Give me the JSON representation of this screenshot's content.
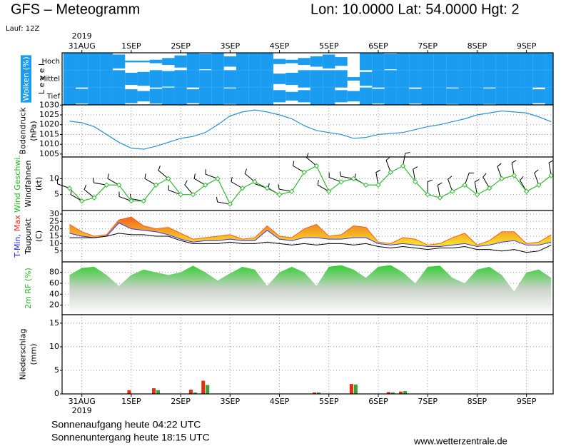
{
  "header": {
    "title": "GFS – Meteogramm",
    "location": "Lon: 10.0000 Lat: 54.0000 Hgt: 2",
    "run": "Lauf: 12Z"
  },
  "x_axis": {
    "xlim": [
      -0.4,
      9.54
    ],
    "year": "2019",
    "xticks": [
      {
        "value": 0,
        "label": "31AUG"
      },
      {
        "value": 1,
        "label": "1SEP"
      },
      {
        "value": 2,
        "label": "2SEP"
      },
      {
        "value": 3,
        "label": "3SEP"
      },
      {
        "value": 4,
        "label": "4SEP"
      },
      {
        "value": 5,
        "label": "5SEP"
      },
      {
        "value": 6,
        "label": "6SEP"
      },
      {
        "value": 7,
        "label": "7SEP"
      },
      {
        "value": 8,
        "label": "8SEP"
      },
      {
        "value": 9,
        "label": "9SEP"
      }
    ]
  },
  "chart_data": [
    {
      "type": "cloud",
      "ylabel": [
        [
          {
            "text": "Wolken (%)",
            "color": "#ffffff",
            "background": "#1a9cf0"
          }
        ],
        [
          {
            "text": "L e v e l",
            "color": "#000000"
          }
        ]
      ],
      "x": [
        -0.25,
        0,
        0.25,
        0.5,
        0.75,
        1,
        1.25,
        1.5,
        1.75,
        2,
        2.25,
        2.5,
        2.75,
        3,
        3.25,
        3.5,
        3.75,
        4,
        4.25,
        4.5,
        4.75,
        5,
        5.25,
        5.5,
        5.75,
        6,
        6.25,
        6.5,
        6.75,
        7,
        7.25,
        7.5,
        7.75,
        8,
        8.25,
        8.5,
        8.75,
        9,
        9.25,
        9.5
      ],
      "series": [
        {
          "name": "Hoch",
          "color": "#1a9cf0",
          "values": [
            100,
            100,
            100,
            100,
            80,
            10,
            10,
            20,
            40,
            70,
            100,
            90,
            100,
            60,
            100,
            100,
            100,
            30,
            20,
            40,
            60,
            80,
            50,
            0,
            100,
            100,
            90,
            100,
            100,
            100,
            100,
            100,
            100,
            100,
            100,
            100,
            100,
            100,
            100,
            100
          ]
        },
        {
          "name": "Mittel",
          "color": "#1a9cf0",
          "values": [
            100,
            100,
            100,
            100,
            100,
            70,
            80,
            100,
            90,
            100,
            100,
            100,
            100,
            100,
            100,
            100,
            100,
            60,
            70,
            100,
            100,
            100,
            100,
            20,
            80,
            100,
            100,
            100,
            100,
            100,
            100,
            100,
            100,
            100,
            100,
            100,
            100,
            100,
            100,
            100
          ]
        },
        {
          "name": "Tief",
          "color": "#1a9cf0",
          "values": [
            100,
            85,
            100,
            100,
            100,
            80,
            60,
            85,
            100,
            100,
            80,
            100,
            100,
            90,
            100,
            100,
            100,
            70,
            50,
            70,
            100,
            100,
            70,
            60,
            100,
            85,
            100,
            100,
            85,
            100,
            100,
            90,
            100,
            100,
            90,
            100,
            100,
            100,
            80,
            100
          ]
        }
      ]
    },
    {
      "type": "line",
      "ylabel": [
        [
          {
            "text": "Bodendruck",
            "color": "#000000"
          }
        ],
        [
          {
            "text": "(hPa)",
            "color": "#000000"
          }
        ]
      ],
      "ylim": [
        1003.5,
        1030.1
      ],
      "yticks": [
        1005,
        1010,
        1015,
        1020,
        1025,
        1030
      ],
      "grid": true,
      "x": [
        -0.25,
        0,
        0.25,
        0.5,
        0.75,
        1,
        1.25,
        1.5,
        1.75,
        2,
        2.25,
        2.5,
        2.75,
        3,
        3.25,
        3.5,
        3.75,
        4,
        4.25,
        4.5,
        4.75,
        5,
        5.25,
        5.5,
        5.75,
        6,
        6.25,
        6.5,
        6.75,
        7,
        7.25,
        7.5,
        7.75,
        8,
        8.25,
        8.5,
        8.75,
        9,
        9.25,
        9.5
      ],
      "series": [
        {
          "color": "#2a8fd8",
          "values": [
            1021.8,
            1021,
            1019,
            1015,
            1011,
            1008,
            1007.5,
            1009,
            1011,
            1013,
            1014,
            1016,
            1020,
            1024.5,
            1026.5,
            1027.5,
            1026.5,
            1025,
            1023,
            1019.5,
            1017,
            1016,
            1015,
            1013,
            1013.5,
            1015,
            1015.5,
            1016,
            1017.5,
            1019,
            1020,
            1021.5,
            1023,
            1025,
            1026,
            1027,
            1026.5,
            1026,
            1024,
            1021.5
          ]
        }
      ]
    },
    {
      "type": "wind",
      "ylabel": [
        [
          {
            "text": "Wind Geschwi.",
            "color": "#22bb22"
          }
        ],
        [
          {
            "text": "Windfahnen",
            "color": "#000000"
          }
        ],
        [
          {
            "text": "(kt)",
            "color": "#000000"
          }
        ]
      ],
      "ylim": [
        0,
        16.8
      ],
      "yticks": [
        5,
        10
      ],
      "grid": true,
      "barb_color": "#000000",
      "x": [
        -0.25,
        0,
        0.25,
        0.5,
        0.75,
        1,
        1.25,
        1.5,
        1.75,
        2,
        2.25,
        2.5,
        2.75,
        3,
        3.25,
        3.5,
        3.75,
        4,
        4.25,
        4.5,
        4.75,
        5,
        5.25,
        5.5,
        5.75,
        6,
        6.25,
        6.5,
        6.75,
        7,
        7.25,
        7.5,
        7.75,
        8,
        8.25,
        8.5,
        8.75,
        9,
        9.25,
        9.5
      ],
      "series": [
        {
          "color": "#33bb33",
          "values": [
            7,
            3,
            4,
            8,
            8,
            3,
            3,
            8,
            10,
            5,
            5,
            8,
            10,
            2,
            7,
            9,
            7,
            5,
            6,
            12,
            14,
            6,
            9,
            10,
            8,
            8,
            12,
            14,
            9,
            5,
            4,
            6,
            8,
            5,
            7,
            10,
            11,
            6,
            8,
            11
          ]
        }
      ],
      "direction": [
        290,
        300,
        310,
        280,
        300,
        290,
        280,
        300,
        310,
        290,
        320,
        300,
        290,
        280,
        300,
        310,
        290,
        300,
        280,
        300,
        310,
        300,
        290,
        280,
        300,
        350,
        340,
        10,
        350,
        0,
        350,
        340,
        20,
        350,
        330,
        340,
        350,
        330,
        340,
        350
      ]
    },
    {
      "type": "band",
      "ylabel": [
        [
          {
            "text": "T-Min,",
            "color": "#2222ff"
          },
          {
            "text": "Max",
            "color": "#ff2222"
          }
        ],
        [
          {
            "text": "Taupunkt",
            "color": "#000000"
          }
        ],
        [
          {
            "text": "(C)",
            "color": "#000000"
          }
        ]
      ],
      "ylim": [
        -2.4,
        32.4
      ],
      "yticks": [
        5,
        10,
        15,
        20,
        25,
        30
      ],
      "grid": true,
      "fill": [
        "#f05a1e",
        "#f8dc28"
      ],
      "x": [
        -0.25,
        0,
        0.25,
        0.5,
        0.75,
        1,
        1.25,
        1.5,
        1.75,
        2,
        2.25,
        2.5,
        2.75,
        3,
        3.25,
        3.5,
        3.75,
        4,
        4.25,
        4.5,
        4.75,
        5,
        5.25,
        5.5,
        5.75,
        6,
        6.25,
        6.5,
        6.75,
        7,
        7.25,
        7.5,
        7.75,
        8,
        8.25,
        8.5,
        8.75,
        9,
        9.25,
        9.5
      ],
      "series": [
        {
          "color": "#3333ff",
          "values": [
            17,
            15,
            14,
            15,
            24,
            20,
            19,
            18,
            16,
            13,
            11,
            12,
            12,
            13,
            12,
            12,
            19,
            13,
            12,
            14,
            14,
            13,
            13,
            14,
            14,
            10,
            9,
            10,
            9,
            8,
            8,
            9,
            10,
            8,
            9,
            11,
            12,
            9,
            9,
            11
          ]
        },
        {
          "color": "#ff5a1e",
          "values": [
            23,
            18,
            15,
            16,
            26,
            28,
            22,
            20,
            21,
            17,
            13,
            14,
            15,
            16,
            13,
            14,
            22,
            15,
            14,
            20,
            23,
            15,
            16,
            22,
            21,
            11,
            10,
            14,
            13,
            9,
            10,
            14,
            17,
            9,
            12,
            18,
            18,
            10,
            11,
            16
          ]
        },
        {
          "color": "#000000",
          "values": [
            14,
            14,
            14,
            15,
            17,
            16,
            16,
            15,
            15,
            12,
            10,
            10,
            10,
            11,
            10,
            10,
            11,
            10,
            9,
            10,
            9,
            10,
            10,
            9,
            10,
            8,
            7,
            8,
            7,
            6,
            7,
            7,
            8,
            6,
            6,
            5,
            6,
            4,
            5,
            9
          ]
        }
      ]
    },
    {
      "type": "area",
      "ylabel": [
        [
          {
            "text": "2m RF (%)",
            "color": "#22bb22"
          }
        ]
      ],
      "ylim": [
        2.6,
        99
      ],
      "yticks": [
        20,
        40,
        60,
        80
      ],
      "grid": true,
      "fill": [
        "#1ecc1e",
        "#c8d2c8",
        "#ffffff"
      ],
      "x": [
        -0.25,
        0,
        0.25,
        0.5,
        0.75,
        1,
        1.25,
        1.5,
        1.75,
        2,
        2.25,
        2.5,
        2.75,
        3,
        3.25,
        3.5,
        3.75,
        4,
        4.25,
        4.5,
        4.75,
        5,
        5.25,
        5.5,
        5.75,
        6,
        6.25,
        6.5,
        6.75,
        7,
        7.25,
        7.5,
        7.75,
        8,
        8.25,
        8.5,
        8.75,
        9,
        9.25,
        9.5
      ],
      "series": [
        {
          "color": "#1ecc1e",
          "values": [
            75,
            88,
            90,
            75,
            55,
            75,
            85,
            80,
            75,
            80,
            92,
            80,
            65,
            78,
            90,
            85,
            55,
            80,
            90,
            80,
            55,
            90,
            93,
            85,
            70,
            90,
            93,
            80,
            60,
            90,
            92,
            70,
            60,
            85,
            90,
            75,
            45,
            80,
            85,
            70
          ]
        }
      ]
    },
    {
      "type": "bar",
      "ylabel": [
        [
          {
            "text": "Niederschlag",
            "color": "#000000"
          }
        ],
        [
          {
            "text": "(mm)",
            "color": "#000000"
          }
        ]
      ],
      "ylim": [
        0,
        16.8
      ],
      "yticks": [
        0,
        5,
        10,
        15
      ],
      "grid": true,
      "x": [
        -0.25,
        0,
        0.25,
        0.5,
        0.75,
        1,
        1.25,
        1.5,
        1.75,
        2,
        2.25,
        2.5,
        2.75,
        3,
        3.25,
        3.5,
        3.75,
        4,
        4.25,
        4.5,
        4.75,
        5,
        5.25,
        5.5,
        5.75,
        6,
        6.25,
        6.5,
        6.75,
        7,
        7.25,
        7.5,
        7.75,
        8,
        8.25,
        8.5,
        8.75,
        9,
        9.25,
        9.5
      ],
      "series": [
        {
          "color": "#e03010",
          "values": [
            0,
            0,
            0,
            0,
            0,
            0.8,
            0,
            1.2,
            0,
            0,
            0.9,
            2.8,
            0,
            0,
            0,
            0,
            0,
            0,
            0,
            0,
            0.3,
            0,
            0,
            2.1,
            0,
            0,
            0.4,
            0.5,
            0,
            0,
            0,
            0,
            0,
            0,
            0,
            0,
            0,
            0,
            0,
            0
          ]
        },
        {
          "color": "#3aa040",
          "values": [
            0,
            0,
            0,
            0,
            0,
            0,
            0,
            0.8,
            0,
            0,
            0.3,
            1.9,
            0,
            0,
            0,
            0,
            0,
            0,
            0,
            0,
            0.3,
            0,
            0,
            2,
            0,
            0,
            0.3,
            0.6,
            0,
            0,
            0,
            0,
            0,
            0,
            0,
            0,
            0,
            0,
            0,
            0
          ]
        }
      ]
    }
  ],
  "footer": {
    "sunrise": "Sonnenaufgang heute 04:22 UTC",
    "sunset": "Sonnenuntergang heute 18:15 UTC",
    "source": "www.wetterzentrale.de"
  }
}
